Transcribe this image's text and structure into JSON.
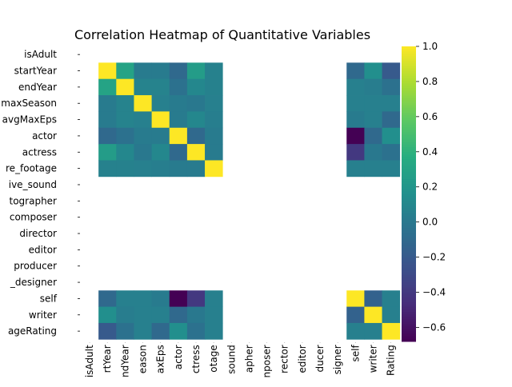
{
  "chart_data": {
    "type": "heatmap",
    "title": "Correlation Heatmap of Quantitative Variables",
    "row_labels": [
      "isAdult",
      "startYear",
      "endYear",
      "maxSeason",
      "avgMaxEps",
      "actor",
      "actress",
      "archive_footage",
      "archive_sound",
      "cinematographer",
      "composer",
      "director",
      "editor",
      "producer",
      "production_designer",
      "self",
      "writer",
      "averageRating"
    ],
    "col_labels": [
      "isAdult",
      "startYear",
      "endYear",
      "maxSeason",
      "avgMaxEps",
      "actor",
      "actress",
      "archive_footage",
      "archive_sound",
      "cinematographer",
      "composer",
      "director",
      "editor",
      "producer",
      "production_designer",
      "self",
      "writer",
      "averageRating"
    ],
    "visible_row_labels": [
      "isAdult",
      "startYear",
      "endYear",
      "maxSeason",
      "avgMaxEps",
      "actor",
      "actress",
      "re_footage",
      "ive_sound",
      "tographer",
      "composer",
      "director",
      "editor",
      "producer",
      "_designer",
      "self",
      "writer",
      "ageRating"
    ],
    "visible_col_labels": [
      "isAdult",
      "rtYear",
      "ndYear",
      "eason",
      "axEps",
      "actor",
      "ctress",
      "otage",
      "sound",
      "apher",
      "nposer",
      "rector",
      "editor",
      "ducer",
      "signer",
      "self",
      "writer",
      "Rating"
    ],
    "colormap": "viridis",
    "vmin": -0.68,
    "vmax": 1.0,
    "colorbar_ticks": [
      1.0,
      0.8,
      0.6,
      0.4,
      0.2,
      0.0,
      -0.2,
      -0.4,
      -0.6
    ],
    "colorbar_tick_labels": [
      "1.0",
      "0.8",
      "0.6",
      "0.4",
      "0.2",
      "0.0",
      "−0.2",
      "−0.4",
      "−0.6"
    ],
    "values": [
      [
        null,
        null,
        null,
        null,
        null,
        null,
        null,
        null,
        null,
        null,
        null,
        null,
        null,
        null,
        null,
        null,
        null,
        null
      ],
      [
        null,
        1.0,
        0.3,
        0.02,
        0.02,
        -0.1,
        0.25,
        0.06,
        null,
        null,
        null,
        null,
        null,
        null,
        null,
        -0.1,
        0.15,
        -0.2
      ],
      [
        null,
        0.3,
        1.0,
        0.07,
        0.07,
        -0.05,
        0.1,
        0.06,
        null,
        null,
        null,
        null,
        null,
        null,
        null,
        0.05,
        0.03,
        -0.05
      ],
      [
        null,
        0.02,
        0.07,
        1.0,
        0.05,
        0.02,
        0.0,
        0.05,
        null,
        null,
        null,
        null,
        null,
        null,
        null,
        0.05,
        0.05,
        0.05
      ],
      [
        null,
        0.02,
        0.07,
        0.05,
        1.0,
        0.02,
        0.1,
        0.04,
        null,
        null,
        null,
        null,
        null,
        null,
        null,
        0.02,
        0.05,
        -0.1
      ],
      [
        null,
        -0.1,
        -0.05,
        0.02,
        0.02,
        1.0,
        -0.1,
        0.02,
        null,
        null,
        null,
        null,
        null,
        null,
        null,
        -0.68,
        -0.1,
        0.15
      ],
      [
        null,
        0.25,
        0.1,
        0.0,
        0.1,
        -0.1,
        1.0,
        0.02,
        null,
        null,
        null,
        null,
        null,
        null,
        null,
        -0.4,
        0.0,
        -0.05
      ],
      [
        null,
        0.06,
        0.06,
        0.05,
        0.04,
        0.02,
        0.02,
        1.0,
        null,
        null,
        null,
        null,
        null,
        null,
        null,
        0.05,
        0.05,
        0.05
      ],
      [
        null,
        null,
        null,
        null,
        null,
        null,
        null,
        null,
        null,
        null,
        null,
        null,
        null,
        null,
        null,
        null,
        null,
        null
      ],
      [
        null,
        null,
        null,
        null,
        null,
        null,
        null,
        null,
        null,
        null,
        null,
        null,
        null,
        null,
        null,
        null,
        null,
        null
      ],
      [
        null,
        null,
        null,
        null,
        null,
        null,
        null,
        null,
        null,
        null,
        null,
        null,
        null,
        null,
        null,
        null,
        null,
        null
      ],
      [
        null,
        null,
        null,
        null,
        null,
        null,
        null,
        null,
        null,
        null,
        null,
        null,
        null,
        null,
        null,
        null,
        null,
        null
      ],
      [
        null,
        null,
        null,
        null,
        null,
        null,
        null,
        null,
        null,
        null,
        null,
        null,
        null,
        null,
        null,
        null,
        null,
        null
      ],
      [
        null,
        null,
        null,
        null,
        null,
        null,
        null,
        null,
        null,
        null,
        null,
        null,
        null,
        null,
        null,
        null,
        null,
        null
      ],
      [
        null,
        null,
        null,
        null,
        null,
        null,
        null,
        null,
        null,
        null,
        null,
        null,
        null,
        null,
        null,
        null,
        null,
        null
      ],
      [
        null,
        -0.1,
        0.05,
        0.05,
        0.02,
        -0.68,
        -0.4,
        0.05,
        null,
        null,
        null,
        null,
        null,
        null,
        null,
        1.0,
        -0.15,
        0.05
      ],
      [
        null,
        0.15,
        0.03,
        0.05,
        0.05,
        -0.1,
        0.0,
        0.05,
        null,
        null,
        null,
        null,
        null,
        null,
        null,
        -0.15,
        1.0,
        0.05
      ],
      [
        null,
        -0.2,
        -0.05,
        0.05,
        -0.1,
        0.15,
        -0.05,
        0.05,
        null,
        null,
        null,
        null,
        null,
        null,
        null,
        0.05,
        0.05,
        1.0
      ]
    ]
  }
}
